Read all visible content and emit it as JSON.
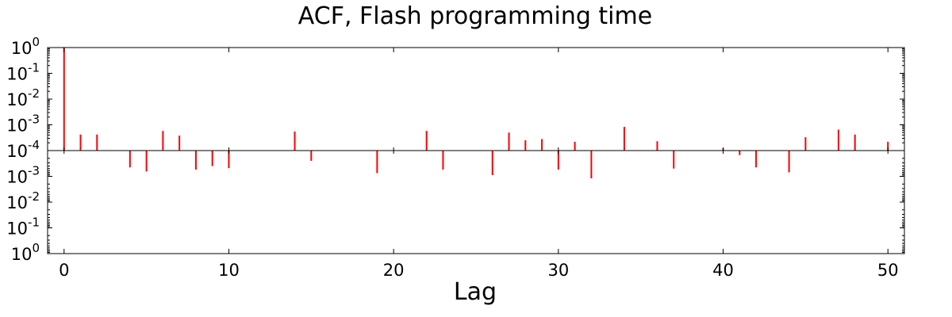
{
  "chart_data": {
    "type": "bar",
    "title": "ACF, Flash programming time",
    "xlabel": "Lag",
    "ylabel": "",
    "xlim": [
      -1,
      51
    ],
    "x_ticks": [
      0,
      10,
      20,
      30,
      40,
      50
    ],
    "y_scale": "symmetric-log",
    "y_floor": 0.0001,
    "y_ticks_positive": [
      {
        "base": "10",
        "exp": "0"
      },
      {
        "base": "10",
        "exp": "-1"
      },
      {
        "base": "10",
        "exp": "-2"
      },
      {
        "base": "10",
        "exp": "-3"
      },
      {
        "base": "10",
        "exp": "-4"
      }
    ],
    "y_ticks_negative": [
      {
        "base": "10",
        "exp": "-3"
      },
      {
        "base": "10",
        "exp": "-2"
      },
      {
        "base": "10",
        "exp": "-1"
      },
      {
        "base": "10",
        "exp": "0"
      }
    ],
    "grid": false,
    "bar_color": "#ff0000",
    "lags": [
      0,
      1,
      2,
      4,
      5,
      6,
      7,
      8,
      9,
      10,
      14,
      15,
      19,
      22,
      23,
      26,
      27,
      28,
      29,
      30,
      31,
      32,
      34,
      36,
      37,
      40,
      41,
      42,
      44,
      45,
      47,
      48,
      50
    ],
    "values": [
      1.0,
      0.00042,
      0.00042,
      -0.00045,
      -0.00065,
      0.00058,
      0.00038,
      -0.00055,
      -0.0004,
      -0.00048,
      0.00055,
      -0.00025,
      -0.00075,
      0.00058,
      -0.00055,
      -0.0009,
      0.0005,
      0.00025,
      0.00028,
      -0.00055,
      0.00022,
      -0.0012,
      0.00083,
      0.00023,
      -0.0005,
      0.00012,
      -0.00015,
      -0.00045,
      -0.0007,
      0.00033,
      0.00065,
      0.00042,
      0.00022
    ]
  }
}
